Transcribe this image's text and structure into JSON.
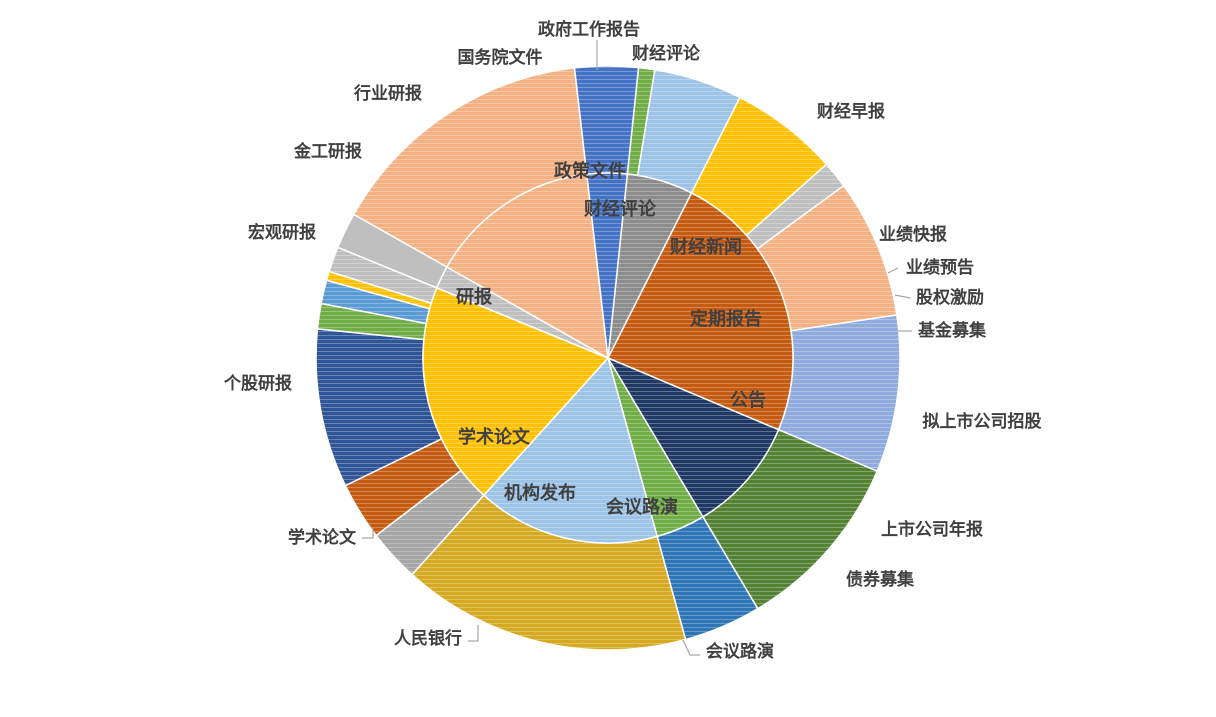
{
  "chart_data": {
    "type": "sunburst",
    "title": "",
    "categories": [
      {
        "name": "政策文件",
        "color": "#8c8c8c",
        "children": [
          {
            "name": "政府工作报告",
            "value": 0.9,
            "color": "#70ad47"
          },
          {
            "name": "国务院文件",
            "value": 4.9,
            "color": "#9dc3e6"
          }
        ]
      },
      {
        "name": "研报",
        "color": "#c55a11",
        "children": [
          {
            "name": "行业研报",
            "value": 6.0,
            "color": "#ffc000"
          },
          {
            "name": "金工研报",
            "value": 1.5,
            "color": "#bfbfbf"
          },
          {
            "name": "宏观研报",
            "value": 7.7,
            "color": "#f4b183"
          },
          {
            "name": "个股研报",
            "value": 8.7,
            "color": "#8faadc"
          }
        ]
      },
      {
        "name": "学术论文",
        "color": "#203864",
        "children": [
          {
            "name": "学术论文",
            "value": 10.1,
            "color": "#548235"
          }
        ]
      },
      {
        "name": "机构发布",
        "color": "#70ad47",
        "children": [
          {
            "name": "人民银行",
            "value": 4.3,
            "color": "#2e75b6"
          }
        ]
      },
      {
        "name": "会议路演",
        "color": "#9dc3e6",
        "children": [
          {
            "name": "会议路演",
            "value": 16.0,
            "color": "#d6a922"
          }
        ]
      },
      {
        "name": "公告",
        "color": "#ffc000",
        "children": [
          {
            "name": "债券募集",
            "value": 2.9,
            "color": "#a5a5a5"
          },
          {
            "name": "上市公司年报",
            "value": 3.2,
            "color": "#c55a11"
          },
          {
            "name": "拟上市公司招股",
            "value": 8.8,
            "color": "#2f5597"
          },
          {
            "name": "基金募集",
            "value": 1.4,
            "color": "#70ad47"
          },
          {
            "name": "股权激励",
            "value": 1.3,
            "color": "#5b9bd5"
          },
          {
            "name": "业绩预告",
            "value": 0.5,
            "color": "#ffc000"
          },
          {
            "name": "业绩快报",
            "value": 1.4,
            "color": "#bfbfbf"
          }
        ]
      },
      {
        "name": "定期报告",
        "color": "#bfbfbf",
        "children": []
      },
      {
        "name": "财经新闻",
        "color": "#f4b183",
        "children": [
          {
            "name": "财经早报",
            "value": 15.0,
            "color": "#f4b183"
          }
        ]
      },
      {
        "name": "财经评论",
        "color": "#4472c4",
        "children": [
          {
            "name": "财经评论",
            "value": 3.5,
            "color": "#4472c4"
          }
        ]
      }
    ]
  }
}
